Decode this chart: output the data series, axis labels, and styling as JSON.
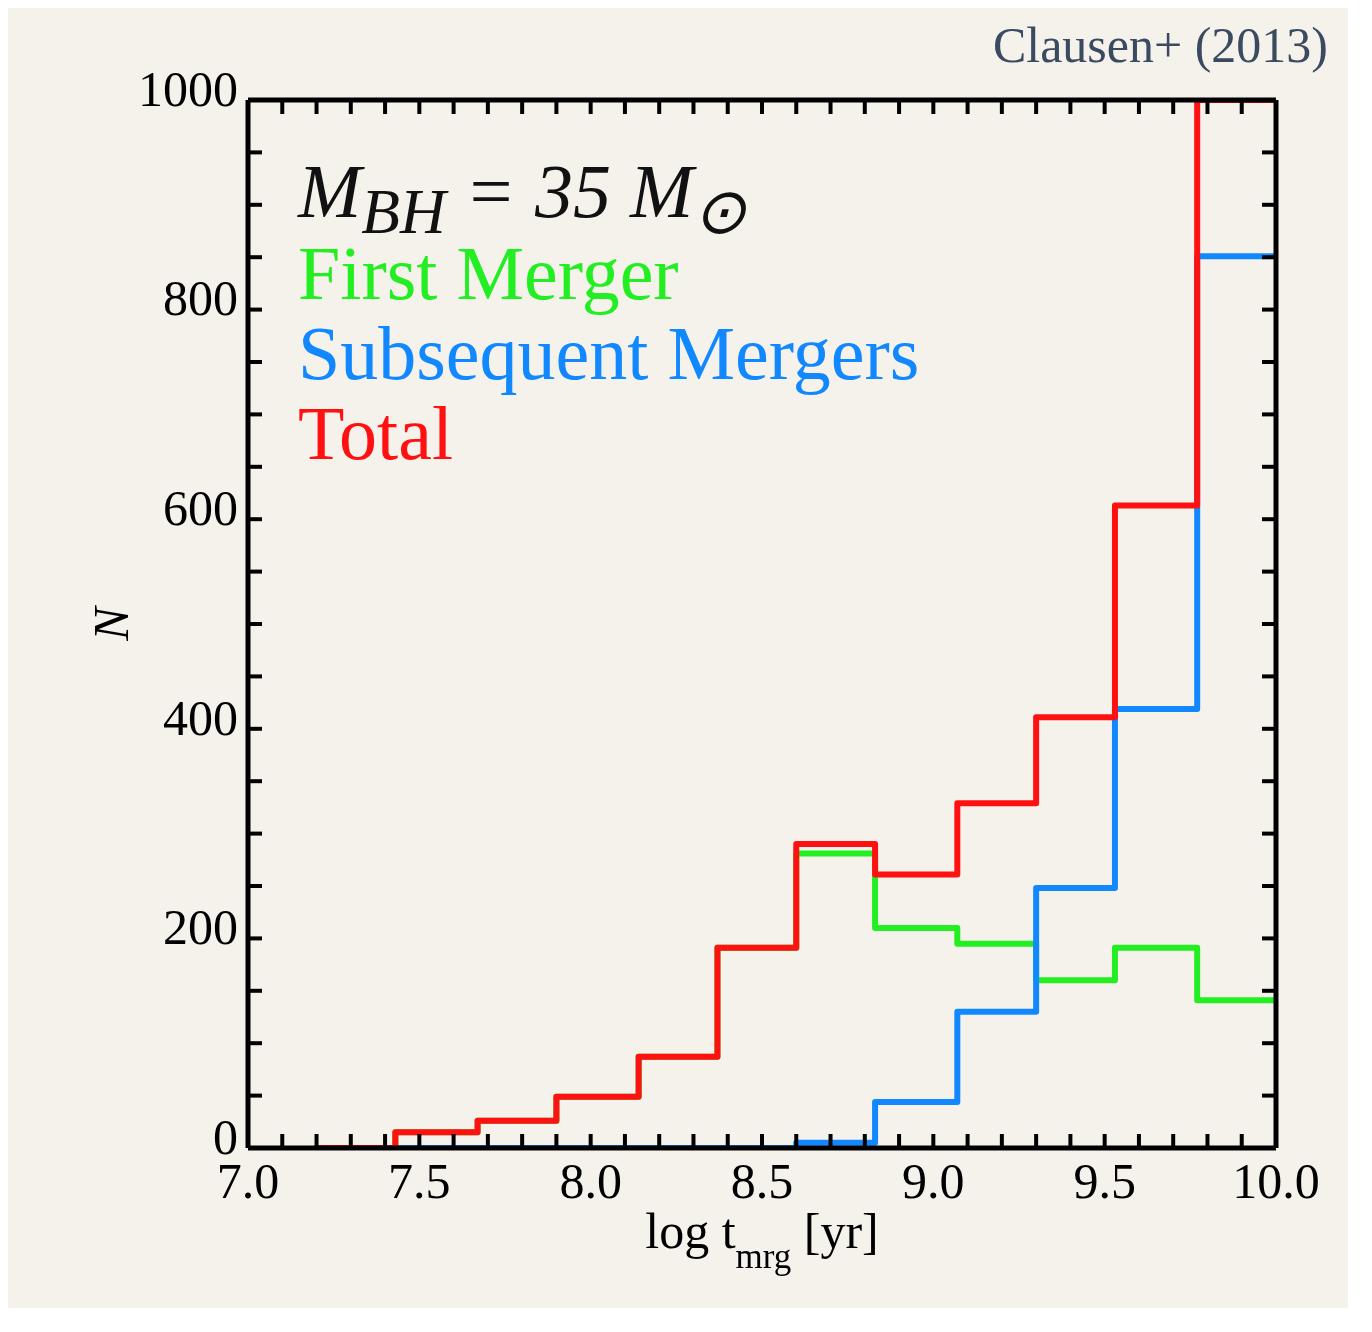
{
  "chart_data": {
    "type": "histogram",
    "xlabel": "log t$_{mrg}$ [yr]",
    "ylabel": "N",
    "annotations": [
      "M$_{BH}$ = 35 M$_{⊙}$",
      "Clausen+ (2013)"
    ],
    "bins": [
      7.2,
      7.43,
      7.67,
      7.9,
      8.14,
      8.37,
      8.6,
      8.83,
      9.07,
      9.3,
      9.53,
      9.77,
      10.0
    ],
    "series": [
      {
        "name": "First Merger",
        "color": "#22ee22",
        "values": [
          0,
          15,
          26,
          49,
          87,
          191,
          281,
          210,
          195,
          160,
          191,
          141
        ]
      },
      {
        "name": "Subsequent Mergers",
        "color": "#1188ff",
        "values": [
          0,
          0,
          0,
          0,
          0,
          0,
          5,
          44,
          130,
          248,
          419,
          851
        ]
      },
      {
        "name": "Total",
        "color": "#ff1111",
        "values": [
          0,
          15,
          26,
          49,
          87,
          191,
          290,
          261,
          329,
          411,
          613,
          1000
        ]
      }
    ],
    "xlim": [
      7.0,
      10.0
    ],
    "xticks": [
      {
        "value": 7,
        "label": "7.0"
      },
      {
        "value": 7.1,
        "label": null
      },
      {
        "value": 7.2,
        "label": null
      },
      {
        "value": 7.3,
        "label": null
      },
      {
        "value": 7.4,
        "label": null
      },
      {
        "value": 7.5,
        "label": "7.5"
      },
      {
        "value": 7.6,
        "label": null
      },
      {
        "value": 7.7,
        "label": null
      },
      {
        "value": 7.8,
        "label": null
      },
      {
        "value": 7.9,
        "label": null
      },
      {
        "value": 8,
        "label": "8.0"
      },
      {
        "value": 8.1,
        "label": null
      },
      {
        "value": 8.2,
        "label": null
      },
      {
        "value": 8.3,
        "label": null
      },
      {
        "value": 8.4,
        "label": null
      },
      {
        "value": 8.5,
        "label": "8.5"
      },
      {
        "value": 8.6,
        "label": null
      },
      {
        "value": 8.7,
        "label": null
      },
      {
        "value": 8.8,
        "label": null
      },
      {
        "value": 8.9,
        "label": null
      },
      {
        "value": 9,
        "label": "9.0"
      },
      {
        "value": 9.1,
        "label": null
      },
      {
        "value": 9.2,
        "label": null
      },
      {
        "value": 9.3,
        "label": null
      },
      {
        "value": 9.4,
        "label": null
      },
      {
        "value": 9.5,
        "label": "9.5"
      },
      {
        "value": 9.6,
        "label": null
      },
      {
        "value": 9.7,
        "label": null
      },
      {
        "value": 9.8,
        "label": null
      },
      {
        "value": 9.9,
        "label": null
      },
      {
        "value": 10,
        "label": "10.0"
      }
    ],
    "ylim": [
      0,
      1000
    ],
    "yticks": [
      0,
      {
        "value": 50,
        "label": null
      },
      {
        "value": 100,
        "label": null
      },
      {
        "value": 150,
        "label": null
      },
      200,
      {
        "value": 250,
        "label": null
      },
      {
        "value": 300,
        "label": null
      },
      {
        "value": 350,
        "label": null
      },
      400,
      {
        "value": 450,
        "label": null
      },
      {
        "value": 500,
        "label": null
      },
      {
        "value": 550,
        "label": null
      },
      600,
      {
        "value": 650,
        "label": null
      },
      {
        "value": 700,
        "label": null
      },
      {
        "value": 750,
        "label": null
      },
      800,
      {
        "value": 850,
        "label": null
      },
      {
        "value": 900,
        "label": null
      },
      {
        "value": 950,
        "label": null
      },
      1000
    ],
    "legend": "top left",
    "grid": false
  }
}
